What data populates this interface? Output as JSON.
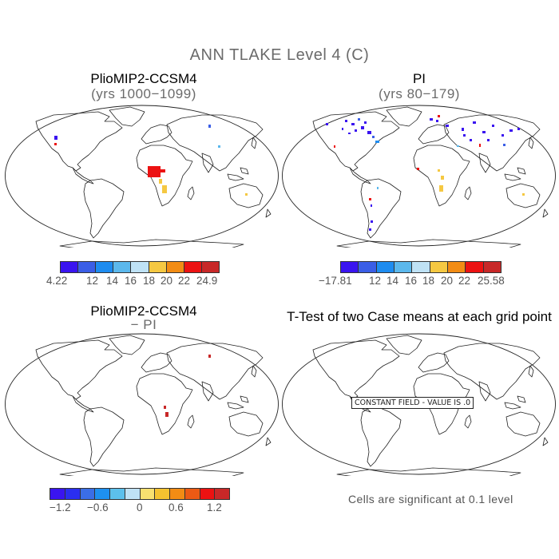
{
  "title": "ANN TLAKE Level 4 (C)",
  "panels": [
    {
      "id": "tl",
      "title": "PlioMIP2-CCSM4",
      "subtitle": "(yrs 1000−1099)",
      "colorbar": {
        "colors": [
          "#3a14f0",
          "#3b5ee6",
          "#1e8cf0",
          "#5cb8ec",
          "#bfe2f5",
          "#f5c842",
          "#f28c14",
          "#ec1212",
          "#c82828"
        ],
        "labels": [
          "4.22",
          "12",
          "14",
          "16",
          "18",
          "20",
          "22",
          "24.9"
        ]
      }
    },
    {
      "id": "tr",
      "title": "PI",
      "subtitle": "(yrs 80−179)",
      "colorbar": {
        "colors": [
          "#3a14f0",
          "#3b5ee6",
          "#1e8cf0",
          "#5cb8ec",
          "#bfe2f5",
          "#f5c842",
          "#f28c14",
          "#ec1212",
          "#c82828"
        ],
        "labels": [
          "−17.81",
          "12",
          "14",
          "16",
          "18",
          "20",
          "22",
          "25.58"
        ]
      }
    },
    {
      "id": "bl",
      "title": "PlioMIP2-CCSM4",
      "subtitle": "− PI",
      "colorbar": {
        "colors": [
          "#3a14f0",
          "#2a2ef0",
          "#3b6ee6",
          "#1e90f0",
          "#5cc0ec",
          "#bfe2f5",
          "#f8e070",
          "#f5c230",
          "#f28c14",
          "#ec5a14",
          "#ec1212",
          "#c82828"
        ],
        "labels": [
          "−1.2",
          "−0.6",
          "0",
          "0.6",
          "1.2"
        ]
      }
    },
    {
      "id": "br",
      "title": "T-Test of two Case means at each grid point",
      "constant_field": "CONSTANT FIELD - VALUE IS .0",
      "note": "Cells are significant at 0.1 level"
    }
  ]
}
